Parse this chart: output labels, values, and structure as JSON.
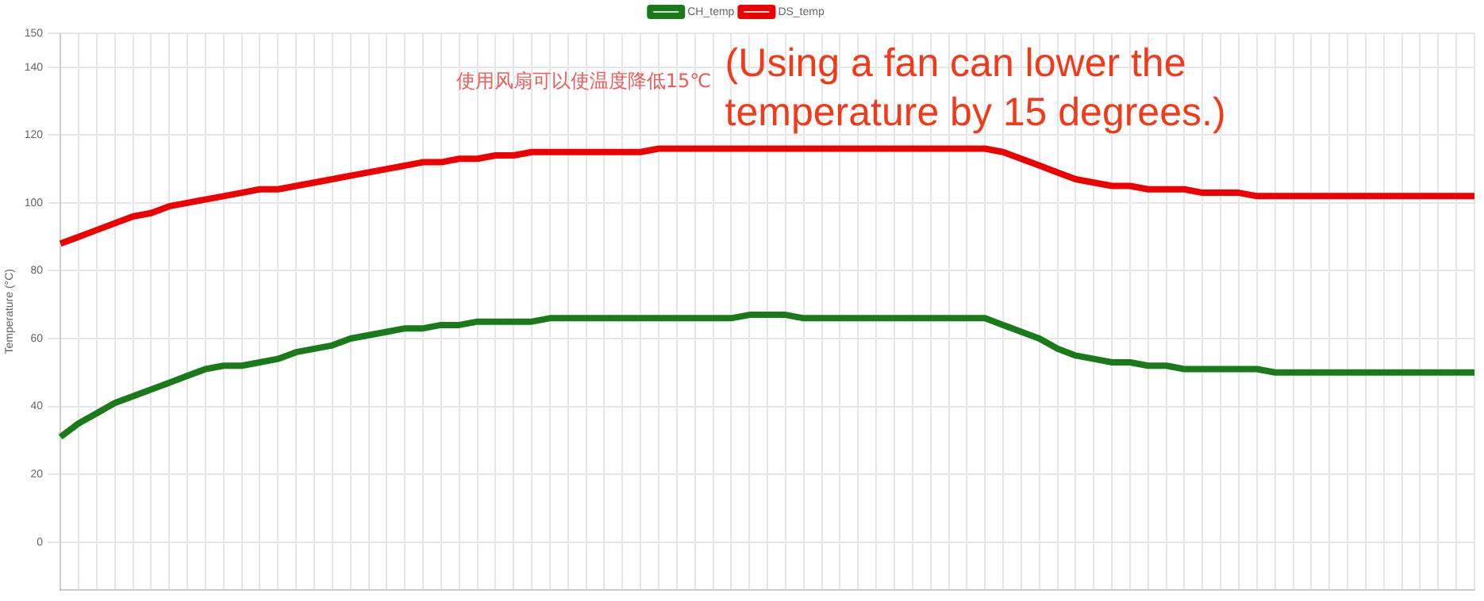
{
  "chart_data": {
    "type": "line",
    "ylabel": "Temperature (°C)",
    "annotations": [
      "使用风扇可以使温度降低15℃",
      "(Using a fan can lower the temperature by 15 degrees.)"
    ],
    "categories": [
      null,
      null,
      null,
      null,
      null,
      null,
      null,
      null,
      null,
      null,
      null,
      null,
      null,
      null,
      null,
      null,
      null,
      null,
      null,
      null,
      null,
      null,
      null,
      null,
      null,
      null,
      null,
      null,
      null,
      null,
      null,
      null,
      null,
      null,
      null,
      null,
      null,
      null,
      null,
      null,
      null,
      null,
      null,
      null,
      null,
      null,
      null,
      null,
      null,
      null,
      null,
      null,
      null,
      null,
      null,
      null,
      null,
      null,
      null,
      null,
      null,
      null,
      null,
      null,
      null,
      null,
      null,
      null,
      null,
      null,
      null,
      null,
      null,
      null,
      null,
      null,
      null,
      null,
      null
    ],
    "series": [
      {
        "name": "CH_temp",
        "color": "#1a7a1a",
        "values": [
          31,
          35,
          38,
          41,
          43,
          45,
          47,
          49,
          51,
          52,
          52,
          53,
          54,
          56,
          57,
          58,
          60,
          61,
          62,
          63,
          63,
          64,
          64,
          65,
          65,
          65,
          65,
          66,
          66,
          66,
          66,
          66,
          66,
          66,
          66,
          66,
          66,
          66,
          67,
          67,
          67,
          66,
          66,
          66,
          66,
          66,
          66,
          66,
          66,
          66,
          66,
          66,
          64,
          62,
          60,
          57,
          55,
          54,
          53,
          53,
          52,
          52,
          51,
          51,
          51,
          51,
          51,
          50,
          50,
          50,
          50,
          50,
          50,
          50,
          50,
          50,
          50,
          50,
          50
        ]
      },
      {
        "name": "DS_temp",
        "color": "#ee0000",
        "values": [
          88,
          90,
          92,
          94,
          96,
          97,
          99,
          100,
          101,
          102,
          103,
          104,
          104,
          105,
          106,
          107,
          108,
          109,
          110,
          111,
          112,
          112,
          113,
          113,
          114,
          114,
          115,
          115,
          115,
          115,
          115,
          115,
          115,
          116,
          116,
          116,
          116,
          116,
          116,
          116,
          116,
          116,
          116,
          116,
          116,
          116,
          116,
          116,
          116,
          116,
          116,
          116,
          115,
          113,
          111,
          109,
          107,
          106,
          105,
          105,
          104,
          104,
          104,
          103,
          103,
          103,
          102,
          102,
          102,
          102,
          102,
          102,
          102,
          102,
          102,
          102,
          102,
          102,
          102
        ]
      }
    ],
    "ylim": [
      -14,
      150
    ],
    "yticks": [
      0,
      20,
      40,
      60,
      80,
      100,
      120,
      140,
      150
    ],
    "grid": true,
    "legend": "top",
    "tick_labels": "y",
    "marker": "none",
    "line_style": "solid"
  }
}
